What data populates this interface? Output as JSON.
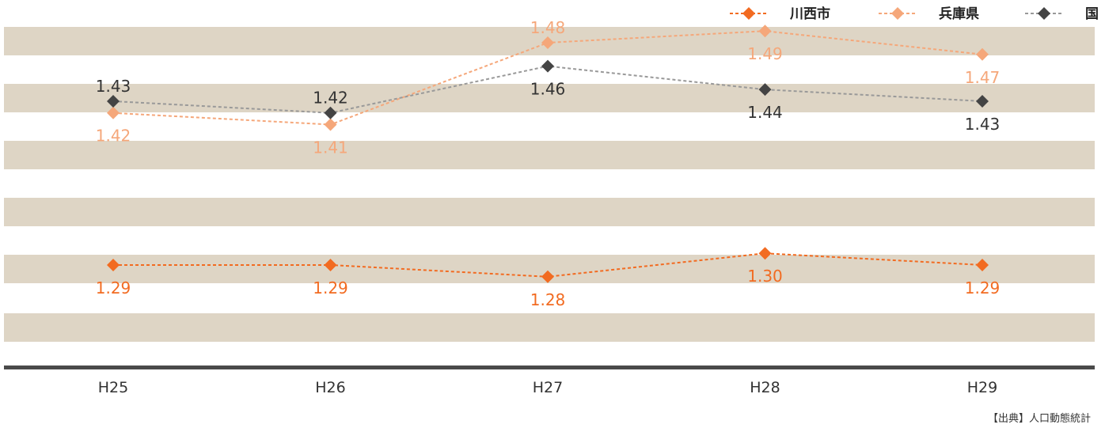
{
  "chart_data": {
    "type": "line",
    "categories": [
      "H25",
      "H26",
      "H27",
      "H28",
      "H29"
    ],
    "series": [
      {
        "name": "川西市",
        "values": [
          1.29,
          1.29,
          1.28,
          1.3,
          1.29
        ],
        "color": "#f26b21",
        "label_color": "#f26b21",
        "line_color": "#f26b21"
      },
      {
        "name": "兵庫県",
        "values": [
          1.42,
          1.41,
          1.48,
          1.49,
          1.47
        ],
        "color": "#f5a77a",
        "label_color": "#f5a77a",
        "line_color": "#f5a77a"
      },
      {
        "name": "国",
        "values": [
          1.43,
          1.42,
          1.46,
          1.44,
          1.43
        ],
        "color": "#444444",
        "label_color": "#333333",
        "line_color": "#999999"
      }
    ],
    "legend_position": "top-right",
    "band_color": "#ded5c5",
    "axis_color": "#4a4a4a"
  },
  "source": "【出典】人口動態統計"
}
